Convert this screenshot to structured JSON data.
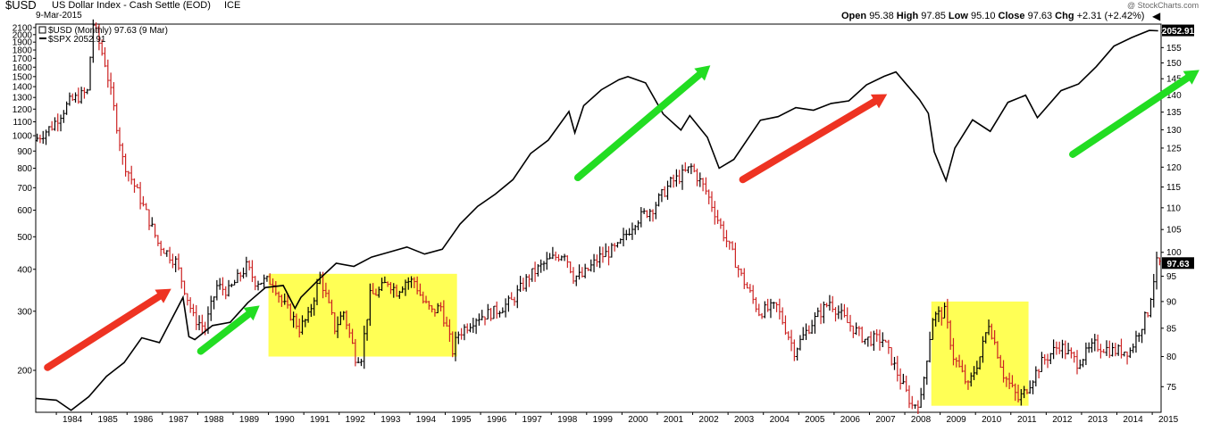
{
  "header": {
    "symbol": "$USD",
    "name": "US Dollar Index - Cash Settle (EOD)",
    "exchange": "ICE",
    "date": "9-Mar-2015",
    "watermark": "@ StockCharts.com",
    "ohlc": {
      "open_label": "Open",
      "open": "95.38",
      "high_label": "High",
      "high": "97.85",
      "low_label": "Low",
      "low": "95.10",
      "close_label": "Close",
      "close": "97.63",
      "chg_label": "Chg",
      "chg": "+2.31 (+2.42%)"
    }
  },
  "legend": {
    "usd": "$USD (Monthly) 97.63 (9 Mar)",
    "spx": "$SPX 2052.91"
  },
  "colors": {
    "up": "#000000",
    "down": "#cc2222",
    "spx": "#000000",
    "highlight": "#ffff55",
    "arrow_green": "#22dd22",
    "arrow_red": "#ee3322",
    "badge": "#000000"
  },
  "chart_data": {
    "type": "line",
    "title": "$USD US Dollar Index - Cash Settle (EOD)",
    "x_start": "1983-06",
    "x_end": "2015-03",
    "x_tick_labels": [
      "1984",
      "1985",
      "1986",
      "1987",
      "1988",
      "1989",
      "1990",
      "1991",
      "1992",
      "1993",
      "1994",
      "1995",
      "1996",
      "1997",
      "1998",
      "1999",
      "2000",
      "2001",
      "2002",
      "2003",
      "2004",
      "2005",
      "2006",
      "2007",
      "2008",
      "2009",
      "2010",
      "2011",
      "2012",
      "2013",
      "2014",
      "2015"
    ],
    "left_axis": {
      "scale": "log",
      "range": [
        150,
        2150
      ],
      "ticks": [
        200,
        300,
        400,
        500,
        600,
        700,
        800,
        900,
        1000,
        1100,
        1200,
        1300,
        1400,
        1500,
        1600,
        1700,
        1800,
        1900,
        2000,
        2100
      ]
    },
    "right_axis": {
      "scale": "log",
      "range": [
        71,
        163
      ],
      "ticks": [
        75,
        80,
        85,
        90,
        95,
        100,
        105,
        110,
        115,
        120,
        125,
        130,
        135,
        140,
        145,
        150,
        155,
        160
      ]
    },
    "last_values": {
      "usd": "97.63",
      "spx": "2052.91"
    },
    "series": [
      {
        "name": "$USD (Monthly)",
        "axis": "right",
        "style": "ohlc-bars",
        "x": [
          "1983-06",
          "1983-12",
          "1984-06",
          "1984-12",
          "1985-02",
          "1985-06",
          "1985-12",
          "1986-06",
          "1986-12",
          "1987-06",
          "1987-12",
          "1988-04",
          "1988-08",
          "1988-12",
          "1989-06",
          "1989-09",
          "1990-03",
          "1990-06",
          "1990-12",
          "1991-03",
          "1991-07",
          "1991-12",
          "1992-03",
          "1992-07",
          "1992-09",
          "1992-12",
          "1993-03",
          "1993-06",
          "1993-09",
          "1993-12",
          "1994-03",
          "1994-06",
          "1994-09",
          "1994-12",
          "1995-04",
          "1995-06",
          "1995-12",
          "1996-06",
          "1996-12",
          "1997-06",
          "1997-12",
          "1998-06",
          "1998-09",
          "1998-12",
          "1999-06",
          "1999-12",
          "2000-06",
          "2000-12",
          "2001-06",
          "2001-10",
          "2002-01",
          "2002-06",
          "2002-12",
          "2003-06",
          "2003-12",
          "2004-06",
          "2004-12",
          "2005-06",
          "2005-12",
          "2006-06",
          "2006-12",
          "2007-06",
          "2007-12",
          "2008-04",
          "2008-07",
          "2008-11",
          "2009-03",
          "2009-06",
          "2009-11",
          "2010-03",
          "2010-06",
          "2010-11",
          "2011-04",
          "2011-06",
          "2011-12",
          "2012-06",
          "2012-12",
          "2013-06",
          "2013-12",
          "2014-06",
          "2014-12",
          "2015-03"
        ],
        "values": [
          127,
          131,
          138,
          141,
          163,
          150,
          122,
          112,
          102,
          98,
          87,
          85,
          93,
          92,
          97,
          94,
          94,
          90,
          85,
          87,
          95,
          85,
          88,
          80,
          80,
          91,
          92,
          94,
          92,
          94,
          94,
          90,
          88,
          89,
          81,
          84,
          87,
          88,
          90,
          95,
          98,
          100,
          95,
          95,
          99,
          101,
          107,
          110,
          116,
          118,
          120,
          114,
          104,
          95,
          88,
          89,
          81,
          86,
          90,
          86,
          83,
          83,
          76,
          72,
          73,
          87,
          88,
          80,
          75,
          80,
          86,
          77,
          73,
          74,
          79,
          82,
          79,
          82,
          81,
          81,
          88,
          97.63
        ]
      },
      {
        "name": "$SPX",
        "axis": "left",
        "style": "line",
        "x": [
          "1983-06",
          "1984-01",
          "1984-06",
          "1984-12",
          "1985-06",
          "1985-12",
          "1986-06",
          "1986-12",
          "1987-08",
          "1987-10",
          "1987-12",
          "1988-06",
          "1988-12",
          "1989-06",
          "1989-12",
          "1990-06",
          "1990-10",
          "1990-12",
          "1991-06",
          "1991-12",
          "1992-06",
          "1992-12",
          "1993-06",
          "1993-12",
          "1994-06",
          "1994-12",
          "1995-06",
          "1995-12",
          "1996-06",
          "1996-12",
          "1997-06",
          "1997-12",
          "1998-07",
          "1998-09",
          "1998-12",
          "1999-06",
          "1999-12",
          "2000-03",
          "2000-09",
          "2001-03",
          "2001-09",
          "2001-12",
          "2002-06",
          "2002-10",
          "2003-03",
          "2003-12",
          "2004-06",
          "2004-12",
          "2005-06",
          "2005-12",
          "2006-06",
          "2006-12",
          "2007-06",
          "2007-10",
          "2008-06",
          "2008-09",
          "2008-11",
          "2009-03",
          "2009-06",
          "2009-12",
          "2010-06",
          "2010-12",
          "2011-06",
          "2011-10",
          "2012-06",
          "2012-12",
          "2013-06",
          "2013-12",
          "2014-06",
          "2014-12",
          "2015-03"
        ],
        "values": [
          165,
          163,
          152,
          167,
          192,
          211,
          250,
          242,
          330,
          252,
          247,
          272,
          278,
          318,
          353,
          358,
          306,
          330,
          372,
          417,
          408,
          435,
          450,
          466,
          444,
          459,
          545,
          616,
          670,
          740,
          885,
          970,
          1180,
          1020,
          1229,
          1370,
          1469,
          1499,
          1436,
          1160,
          1040,
          1148,
          989,
          800,
          850,
          1112,
          1140,
          1212,
          1191,
          1248,
          1270,
          1418,
          1503,
          1549,
          1280,
          1166,
          896,
          735,
          919,
          1115,
          1030,
          1257,
          1320,
          1131,
          1362,
          1426,
          1606,
          1848,
          1960,
          2059,
          2052.91
        ]
      }
    ],
    "annotations": [
      {
        "kind": "highlight-box",
        "from": "1990-01",
        "to": "1995-05",
        "low": 80,
        "high": 95.5
      },
      {
        "kind": "highlight-box",
        "from": "2008-10",
        "to": "2011-07",
        "low": 72,
        "high": 90
      },
      {
        "kind": "arrow",
        "color": "red",
        "from": [
          "1983-10",
          204
        ],
        "to": [
          "1987-04",
          350
        ]
      },
      {
        "kind": "arrow",
        "color": "green",
        "from": [
          "1988-02",
          228
        ],
        "to": [
          "1989-10",
          312
        ]
      },
      {
        "kind": "arrow",
        "color": "green",
        "from": [
          "1998-10",
          750
        ],
        "to": [
          "2002-07",
          1620
        ]
      },
      {
        "kind": "arrow",
        "color": "red",
        "from": [
          "2003-06",
          740
        ],
        "to": [
          "2007-07",
          1330
        ]
      },
      {
        "kind": "arrow",
        "color": "green",
        "from": [
          "2012-10",
          880
        ],
        "to": [
          "2016-05",
          1570
        ]
      }
    ]
  }
}
